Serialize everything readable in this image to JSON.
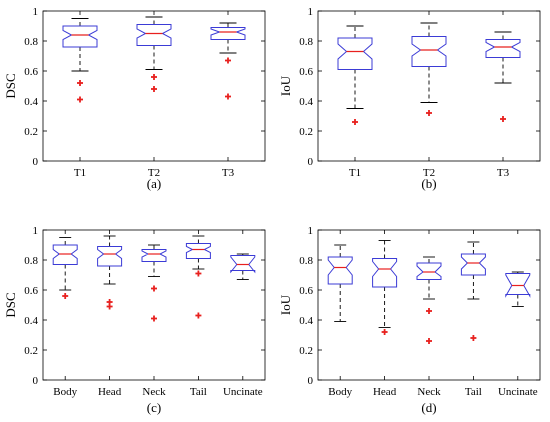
{
  "chart_data": [
    {
      "type": "boxplot",
      "caption": "(a)",
      "ylabel": "DSC",
      "ylim": [
        0,
        1
      ],
      "yticks": [
        0,
        0.2,
        0.4,
        0.6,
        0.8,
        1
      ],
      "ytick_labels": [
        "0",
        "0.2",
        "0.4",
        "0.6",
        "0.8",
        "1"
      ],
      "categories": [
        "T1",
        "T2",
        "T3"
      ],
      "boxes": [
        {
          "whisker_low": 0.6,
          "q1": 0.76,
          "median": 0.84,
          "q3": 0.9,
          "whisker_high": 0.95,
          "notch_low": 0.81,
          "notch_high": 0.87,
          "outliers": [
            0.52,
            0.41
          ]
        },
        {
          "whisker_low": 0.61,
          "q1": 0.77,
          "median": 0.85,
          "q3": 0.91,
          "whisker_high": 0.96,
          "notch_low": 0.82,
          "notch_high": 0.88,
          "outliers": [
            0.56,
            0.48
          ]
        },
        {
          "whisker_low": 0.72,
          "q1": 0.81,
          "median": 0.86,
          "q3": 0.89,
          "whisker_high": 0.92,
          "notch_low": 0.84,
          "notch_high": 0.88,
          "outliers": [
            0.67,
            0.43
          ]
        }
      ]
    },
    {
      "type": "boxplot",
      "caption": "(b)",
      "ylabel": "IoU",
      "ylim": [
        0,
        1
      ],
      "yticks": [
        0,
        0.2,
        0.4,
        0.6,
        0.8,
        1
      ],
      "ytick_labels": [
        "0",
        "0.2",
        "0.4",
        "0.6",
        "0.8",
        "1"
      ],
      "categories": [
        "T1",
        "T2",
        "T3"
      ],
      "boxes": [
        {
          "whisker_low": 0.35,
          "q1": 0.61,
          "median": 0.73,
          "q3": 0.82,
          "whisker_high": 0.9,
          "notch_low": 0.68,
          "notch_high": 0.78,
          "outliers": [
            0.26
          ]
        },
        {
          "whisker_low": 0.39,
          "q1": 0.63,
          "median": 0.74,
          "q3": 0.83,
          "whisker_high": 0.92,
          "notch_low": 0.7,
          "notch_high": 0.78,
          "outliers": [
            0.32
          ]
        },
        {
          "whisker_low": 0.52,
          "q1": 0.69,
          "median": 0.76,
          "q3": 0.81,
          "whisker_high": 0.86,
          "notch_low": 0.73,
          "notch_high": 0.79,
          "outliers": [
            0.28
          ]
        }
      ]
    },
    {
      "type": "boxplot",
      "caption": "(c)",
      "ylabel": "DSC",
      "ylim": [
        0,
        1
      ],
      "yticks": [
        0,
        0.2,
        0.4,
        0.6,
        0.8,
        1
      ],
      "ytick_labels": [
        "0",
        "0.2",
        "0.4",
        "0.6",
        "0.8",
        "1"
      ],
      "categories": [
        "Body",
        "Head",
        "Neck",
        "Tail",
        "Uncinate"
      ],
      "boxes": [
        {
          "whisker_low": 0.6,
          "q1": 0.77,
          "median": 0.84,
          "q3": 0.9,
          "whisker_high": 0.95,
          "notch_low": 0.81,
          "notch_high": 0.87,
          "outliers": [
            0.56
          ]
        },
        {
          "whisker_low": 0.64,
          "q1": 0.76,
          "median": 0.84,
          "q3": 0.89,
          "whisker_high": 0.96,
          "notch_low": 0.81,
          "notch_high": 0.87,
          "outliers": [
            0.52,
            0.49
          ]
        },
        {
          "whisker_low": 0.69,
          "q1": 0.79,
          "median": 0.84,
          "q3": 0.87,
          "whisker_high": 0.9,
          "notch_low": 0.82,
          "notch_high": 0.86,
          "outliers": [
            0.61,
            0.41
          ]
        },
        {
          "whisker_low": 0.74,
          "q1": 0.81,
          "median": 0.87,
          "q3": 0.91,
          "whisker_high": 0.96,
          "notch_low": 0.85,
          "notch_high": 0.89,
          "outliers": [
            0.71,
            0.43
          ]
        },
        {
          "whisker_low": 0.67,
          "q1": 0.73,
          "median": 0.77,
          "q3": 0.83,
          "whisker_high": 0.84,
          "notch_low": 0.72,
          "notch_high": 0.82,
          "outliers": []
        }
      ]
    },
    {
      "type": "boxplot",
      "caption": "(d)",
      "ylabel": "IoU",
      "ylim": [
        0,
        1
      ],
      "yticks": [
        0,
        0.2,
        0.4,
        0.6,
        0.8,
        1
      ],
      "ytick_labels": [
        "0",
        "0.2",
        "0.4",
        "0.6",
        "0.8",
        "1"
      ],
      "categories": [
        "Body",
        "Head",
        "Neck",
        "Tail",
        "Uncinate"
      ],
      "boxes": [
        {
          "whisker_low": 0.39,
          "q1": 0.64,
          "median": 0.75,
          "q3": 0.82,
          "whisker_high": 0.9,
          "notch_low": 0.7,
          "notch_high": 0.8,
          "outliers": []
        },
        {
          "whisker_low": 0.35,
          "q1": 0.62,
          "median": 0.74,
          "q3": 0.81,
          "whisker_high": 0.93,
          "notch_low": 0.69,
          "notch_high": 0.79,
          "outliers": [
            0.32
          ]
        },
        {
          "whisker_low": 0.54,
          "q1": 0.67,
          "median": 0.72,
          "q3": 0.78,
          "whisker_high": 0.82,
          "notch_low": 0.69,
          "notch_high": 0.76,
          "outliers": [
            0.46,
            0.26
          ]
        },
        {
          "whisker_low": 0.54,
          "q1": 0.7,
          "median": 0.78,
          "q3": 0.84,
          "whisker_high": 0.92,
          "notch_low": 0.74,
          "notch_high": 0.82,
          "outliers": [
            0.28
          ]
        },
        {
          "whisker_low": 0.49,
          "q1": 0.57,
          "median": 0.63,
          "q3": 0.71,
          "whisker_high": 0.72,
          "notch_low": 0.56,
          "notch_high": 0.7,
          "outliers": []
        }
      ]
    }
  ],
  "colors": {
    "box": "#3b3bd6",
    "median": "#e8201e",
    "outlier": "#e8201e",
    "whisker": "#000000"
  }
}
